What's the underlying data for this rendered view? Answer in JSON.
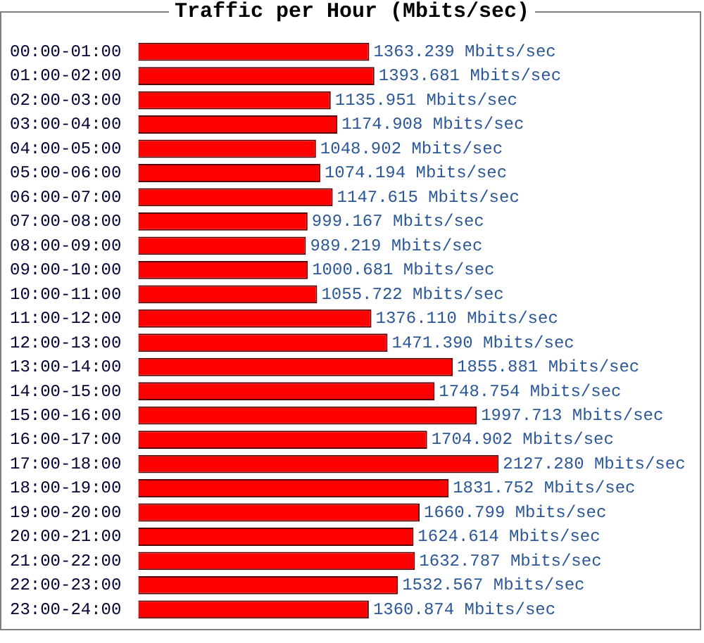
{
  "chart_data": {
    "type": "bar",
    "orientation": "horizontal",
    "title": "Traffic per Hour (Mbits/sec)",
    "categories": [
      "00:00-01:00",
      "01:00-02:00",
      "02:00-03:00",
      "03:00-04:00",
      "04:00-05:00",
      "05:00-06:00",
      "06:00-07:00",
      "07:00-08:00",
      "08:00-09:00",
      "09:00-10:00",
      "10:00-11:00",
      "11:00-12:00",
      "12:00-13:00",
      "13:00-14:00",
      "14:00-15:00",
      "15:00-16:00",
      "16:00-17:00",
      "17:00-18:00",
      "18:00-19:00",
      "19:00-20:00",
      "20:00-21:00",
      "21:00-22:00",
      "22:00-23:00",
      "23:00-24:00"
    ],
    "values": [
      1363.239,
      1393.681,
      1135.951,
      1174.908,
      1048.902,
      1074.194,
      1147.615,
      999.167,
      989.219,
      1000.681,
      1055.722,
      1376.11,
      1471.39,
      1855.881,
      1748.754,
      1997.713,
      1704.902,
      2127.28,
      1831.752,
      1660.799,
      1624.614,
      1632.787,
      1532.567,
      1360.874
    ],
    "value_labels": [
      "1363.239 Mbits/sec",
      "1393.681 Mbits/sec",
      "1135.951 Mbits/sec",
      "1174.908 Mbits/sec",
      "1048.902 Mbits/sec",
      "1074.194 Mbits/sec",
      "1147.615 Mbits/sec",
      "999.167 Mbits/sec",
      "989.219 Mbits/sec",
      "1000.681 Mbits/sec",
      "1055.722 Mbits/sec",
      "1376.110 Mbits/sec",
      "1471.390 Mbits/sec",
      "1855.881 Mbits/sec",
      "1748.754 Mbits/sec",
      "1997.713 Mbits/sec",
      "1704.902 Mbits/sec",
      "2127.280 Mbits/sec",
      "1831.752 Mbits/sec",
      "1660.799 Mbits/sec",
      "1624.614 Mbits/sec",
      "1632.787 Mbits/sec",
      "1532.567 Mbits/sec",
      "1360.874 Mbits/sec"
    ],
    "color": "#ff0000"
  }
}
